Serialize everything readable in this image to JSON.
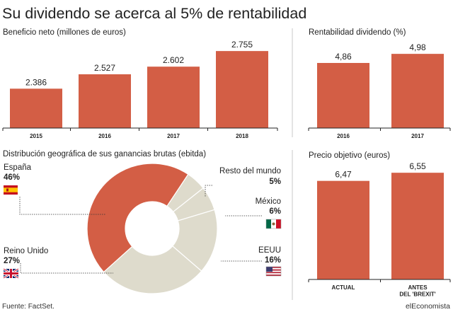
{
  "title": "Su dividendo se acerca al 5% de rentabilidad",
  "source": "Fuente: FactSet.",
  "brand": "elEconomista",
  "colors": {
    "bar": "#d35e45",
    "pie_main": "#d35e45",
    "pie_rest": "#dedbcc",
    "axis": "#222222",
    "divider": "#c8c8c8"
  },
  "chart_data": [
    {
      "type": "bar",
      "title": "Beneficio neto (millones de euros)",
      "categories": [
        "2015",
        "2016",
        "2017",
        "2018"
      ],
      "values": [
        2386,
        2527,
        2602,
        2755
      ],
      "value_labels": [
        "2.386",
        "2.527",
        "2.602",
        "2.755"
      ]
    },
    {
      "type": "bar",
      "title": "Rentabilidad dividendo (%)",
      "categories": [
        "2016",
        "2017"
      ],
      "values": [
        4.86,
        4.98
      ],
      "value_labels": [
        "4,86",
        "4,98"
      ]
    },
    {
      "type": "pie",
      "title": "Distribución geográfica de sus ganancias brutas (ebitda)",
      "slices": [
        {
          "label": "España",
          "value": 46,
          "value_label": "46%",
          "flag": "spain-flag-icon"
        },
        {
          "label": "Resto del mundo",
          "value": 5,
          "value_label": "5%"
        },
        {
          "label": "México",
          "value": 6,
          "value_label": "6%",
          "flag": "mexico-flag-icon"
        },
        {
          "label": "EEUU",
          "value": 16,
          "value_label": "16%",
          "flag": "usa-flag-icon"
        },
        {
          "label": "Reino Unido",
          "value": 27,
          "value_label": "27%",
          "flag": "uk-flag-icon"
        }
      ]
    },
    {
      "type": "bar",
      "title": "Precio objetivo (euros)",
      "categories": [
        "ACTUAL",
        "ANTES DEL 'BREXIT'"
      ],
      "category_lines": [
        [
          "ACTUAL"
        ],
        [
          "ANTES",
          "DEL 'BREXIT'"
        ]
      ],
      "values": [
        6.47,
        6.55
      ],
      "value_labels": [
        "6,47",
        "6,55"
      ]
    }
  ]
}
